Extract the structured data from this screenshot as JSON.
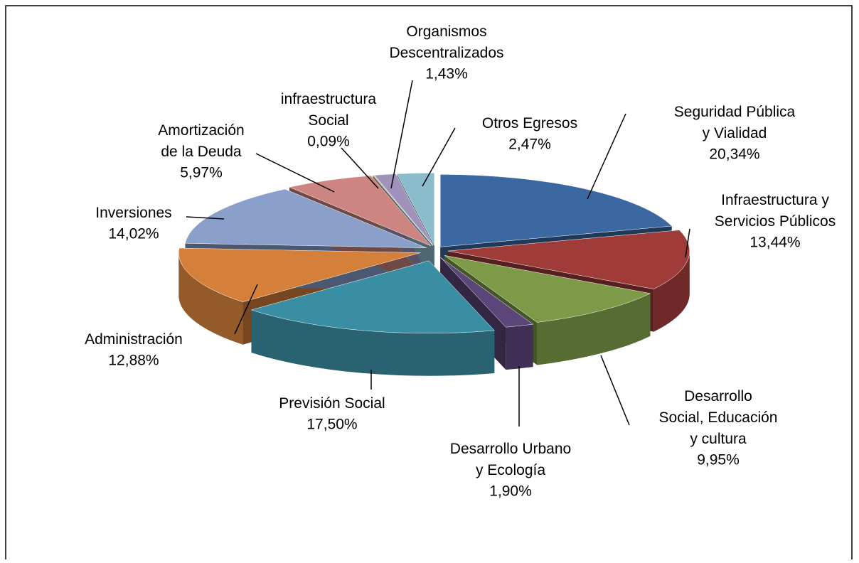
{
  "chart_data": {
    "type": "pie3d",
    "categories": [
      "Seguridad Pública\ny Vialidad",
      "Infraestructura y\nServicios Públicos",
      "Desarrollo\nSocial, Educación\ny cultura",
      "Desarrollo Urbano\ny Ecología",
      "Previsión Social",
      "Administración",
      "Inversiones",
      "Amortización\nde la Deuda",
      "infraestructura\nSocial",
      "Organismos\nDescentralizados",
      "Otros Egresos"
    ],
    "values": [
      20.34,
      13.44,
      9.95,
      1.9,
      17.5,
      12.88,
      14.02,
      5.97,
      0.09,
      1.43,
      2.47
    ],
    "value_labels": [
      "20,34%",
      "13,44%",
      "9,95%",
      "1,90%",
      "17,50%",
      "12,88%",
      "14,02%",
      "5,97%",
      "0,09%",
      "1,43%",
      "2,47%"
    ],
    "colors": [
      "#3b68a0",
      "#9f3b39",
      "#7c9a48",
      "#5b4579",
      "#3a8ea3",
      "#d4803a",
      "#8aa0ca",
      "#cc8581",
      "#a9c17d",
      "#a192bb",
      "#8bbccc"
    ]
  }
}
